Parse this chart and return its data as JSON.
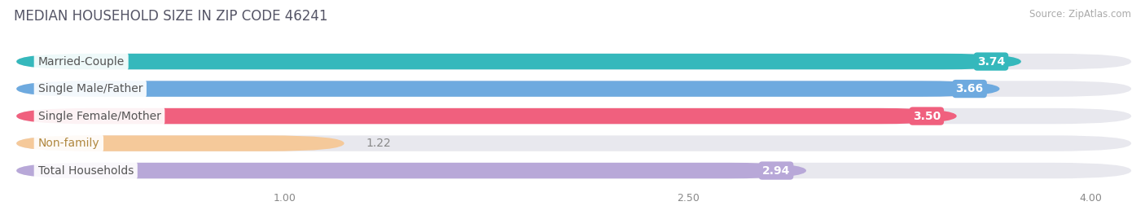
{
  "title": "MEDIAN HOUSEHOLD SIZE IN ZIP CODE 46241",
  "source": "Source: ZipAtlas.com",
  "categories": [
    "Married-Couple",
    "Single Male/Father",
    "Single Female/Mother",
    "Non-family",
    "Total Households"
  ],
  "values": [
    3.74,
    3.66,
    3.5,
    1.22,
    2.94
  ],
  "bar_colors": [
    "#35b8bc",
    "#6eaadf",
    "#f0607e",
    "#f5c99a",
    "#b8a8d8"
  ],
  "label_text_colors": [
    "#555555",
    "#555555",
    "#555555",
    "#b08840",
    "#555555"
  ],
  "value_text_colors": [
    "white",
    "white",
    "white",
    "#b08840",
    "white"
  ],
  "xlim": [
    0,
    4.15
  ],
  "xmin": 0.0,
  "xticks": [
    1.0,
    2.5,
    4.0
  ],
  "background_color": "#ffffff",
  "bar_bg_color": "#e8e8ee",
  "title_fontsize": 12,
  "source_fontsize": 8.5,
  "label_fontsize": 10,
  "value_fontsize": 10
}
